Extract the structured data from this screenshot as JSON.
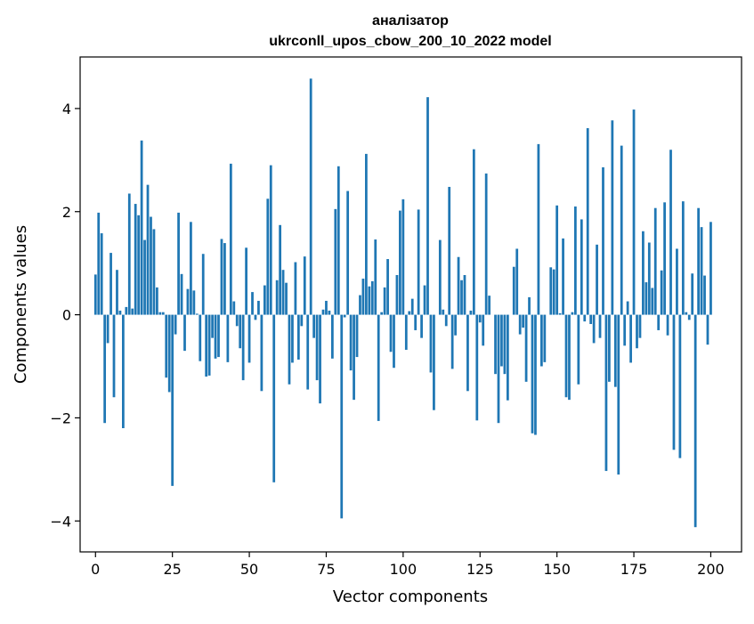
{
  "chart_data": {
    "type": "bar",
    "title": "аналізатор",
    "subtitle": "ukrconll_upos_cbow_200_10_2022 model",
    "xlabel": "Vector components",
    "ylabel": "Components values",
    "xlim": [
      -5,
      210
    ],
    "ylim": [
      -4.6,
      5.0
    ],
    "xticks": [
      0,
      25,
      50,
      75,
      100,
      125,
      150,
      175,
      200
    ],
    "yticks": [
      -4,
      -2,
      0,
      2,
      4
    ],
    "xtick_labels": [
      "0",
      "25",
      "50",
      "75",
      "100",
      "125",
      "150",
      "175",
      "200"
    ],
    "ytick_labels": [
      "−4",
      "−2",
      "0",
      "2",
      "4"
    ],
    "grid": false,
    "legend": false,
    "bar_color": "#1f77b4",
    "x_start": 0,
    "values": [
      0.78,
      1.98,
      1.58,
      -2.1,
      -0.55,
      1.2,
      -1.6,
      0.87,
      0.08,
      -2.2,
      0.15,
      2.35,
      0.12,
      2.15,
      1.93,
      3.38,
      1.45,
      2.52,
      1.9,
      1.66,
      0.53,
      0.05,
      0.05,
      -1.22,
      -1.5,
      -3.32,
      -0.38,
      1.98,
      0.79,
      -0.7,
      0.5,
      1.8,
      0.47,
      0.02,
      -0.9,
      1.18,
      -1.2,
      -1.18,
      -0.45,
      -0.85,
      -0.82,
      1.47,
      1.39,
      -0.92,
      2.93,
      0.26,
      -0.22,
      -0.65,
      -1.27,
      1.3,
      -0.93,
      0.44,
      -0.1,
      0.27,
      -1.48,
      0.57,
      2.25,
      2.9,
      -3.25,
      0.67,
      1.74,
      0.87,
      0.62,
      -1.35,
      -0.93,
      1.02,
      -0.87,
      -0.22,
      1.13,
      -1.45,
      4.58,
      -0.45,
      -1.27,
      -1.72,
      0.1,
      0.27,
      0.08,
      -0.85,
      2.05,
      2.88,
      -3.95,
      -0.05,
      2.4,
      -1.08,
      -1.65,
      -0.82,
      0.38,
      0.7,
      3.12,
      0.55,
      0.65,
      1.46,
      -2.06,
      0.05,
      0.53,
      1.08,
      -0.72,
      -1.03,
      0.77,
      2.02,
      2.24,
      -0.68,
      0.07,
      0.31,
      -0.3,
      2.04,
      -0.45,
      0.57,
      4.22,
      -1.12,
      -1.85,
      0.0,
      1.45,
      0.1,
      -0.22,
      2.48,
      -1.05,
      -0.4,
      1.12,
      0.67,
      0.77,
      -1.48,
      0.08,
      3.21,
      -2.05,
      -0.15,
      -0.6,
      2.74,
      0.37,
      0.0,
      -1.15,
      -2.1,
      -1.0,
      -1.15,
      -1.66,
      0.0,
      0.93,
      1.28,
      -0.38,
      -0.25,
      -1.3,
      0.34,
      -2.3,
      -2.33,
      3.31,
      -1.0,
      -0.92,
      0.0,
      0.92,
      0.88,
      2.12,
      0.03,
      1.48,
      -1.6,
      -1.65,
      0.05,
      2.1,
      -1.35,
      1.85,
      -0.13,
      3.62,
      -0.18,
      -0.55,
      1.36,
      -0.45,
      2.86,
      -3.03,
      -1.3,
      3.77,
      -1.4,
      -3.1,
      3.28,
      -0.6,
      0.26,
      -0.93,
      3.98,
      -0.65,
      -0.45,
      1.62,
      0.63,
      1.4,
      0.52,
      2.07,
      -0.3,
      0.86,
      2.18,
      -0.4,
      3.2,
      -2.62,
      1.28,
      -2.78,
      2.2,
      0.05,
      -0.1,
      0.8,
      -4.12,
      2.07,
      1.7,
      0.76,
      -0.58,
      1.8
    ]
  }
}
